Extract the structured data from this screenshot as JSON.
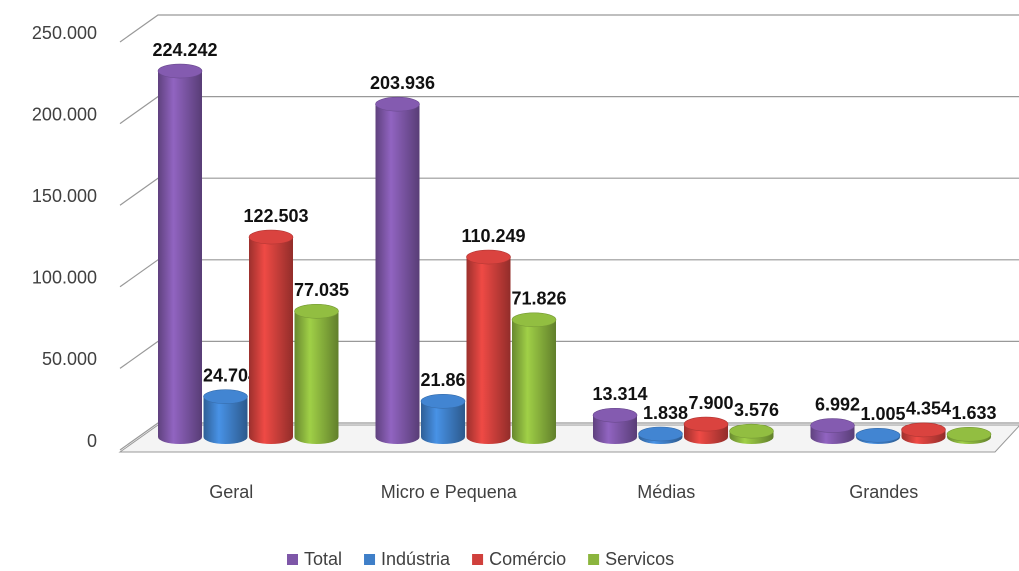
{
  "chart_data": {
    "type": "bar3d",
    "categories": [
      "Geral",
      "Micro e Pequena",
      "Médias",
      "Grandes"
    ],
    "series": [
      {
        "name": "Total",
        "color": "#7e57a8",
        "values": [
          224242,
          203936,
          13314,
          6992
        ],
        "value_labels": [
          "224.242",
          "203.936",
          "13.314",
          "6.992"
        ]
      },
      {
        "name": "Indústria",
        "color": "#3f7fc8",
        "values": [
          24704,
          21861,
          1838,
          1005
        ],
        "value_labels": [
          "24.704",
          "21.861",
          "1.838",
          "1.005"
        ]
      },
      {
        "name": "Comércio",
        "color": "#d0403c",
        "values": [
          122503,
          110249,
          7900,
          4354
        ],
        "value_labels": [
          "122.503",
          "110.249",
          "7.900",
          "4.354"
        ]
      },
      {
        "name": "Servicos",
        "color": "#8bb53e",
        "values": [
          77035,
          71826,
          3576,
          1633
        ],
        "value_labels": [
          "77.035",
          "71.826",
          "3.576",
          "1.633"
        ]
      }
    ],
    "ylim": [
      0,
      250000
    ],
    "yticks": [
      0,
      {
        "value": 50000,
        "label": "50.000"
      },
      {
        "value": 100000,
        "label": "100.000"
      },
      {
        "value": 150000,
        "label": "150.000"
      },
      {
        "value": 200000,
        "label": "200.000"
      },
      {
        "value": 250000,
        "label": "250.000"
      }
    ],
    "grid": true,
    "legend": "bottom"
  }
}
